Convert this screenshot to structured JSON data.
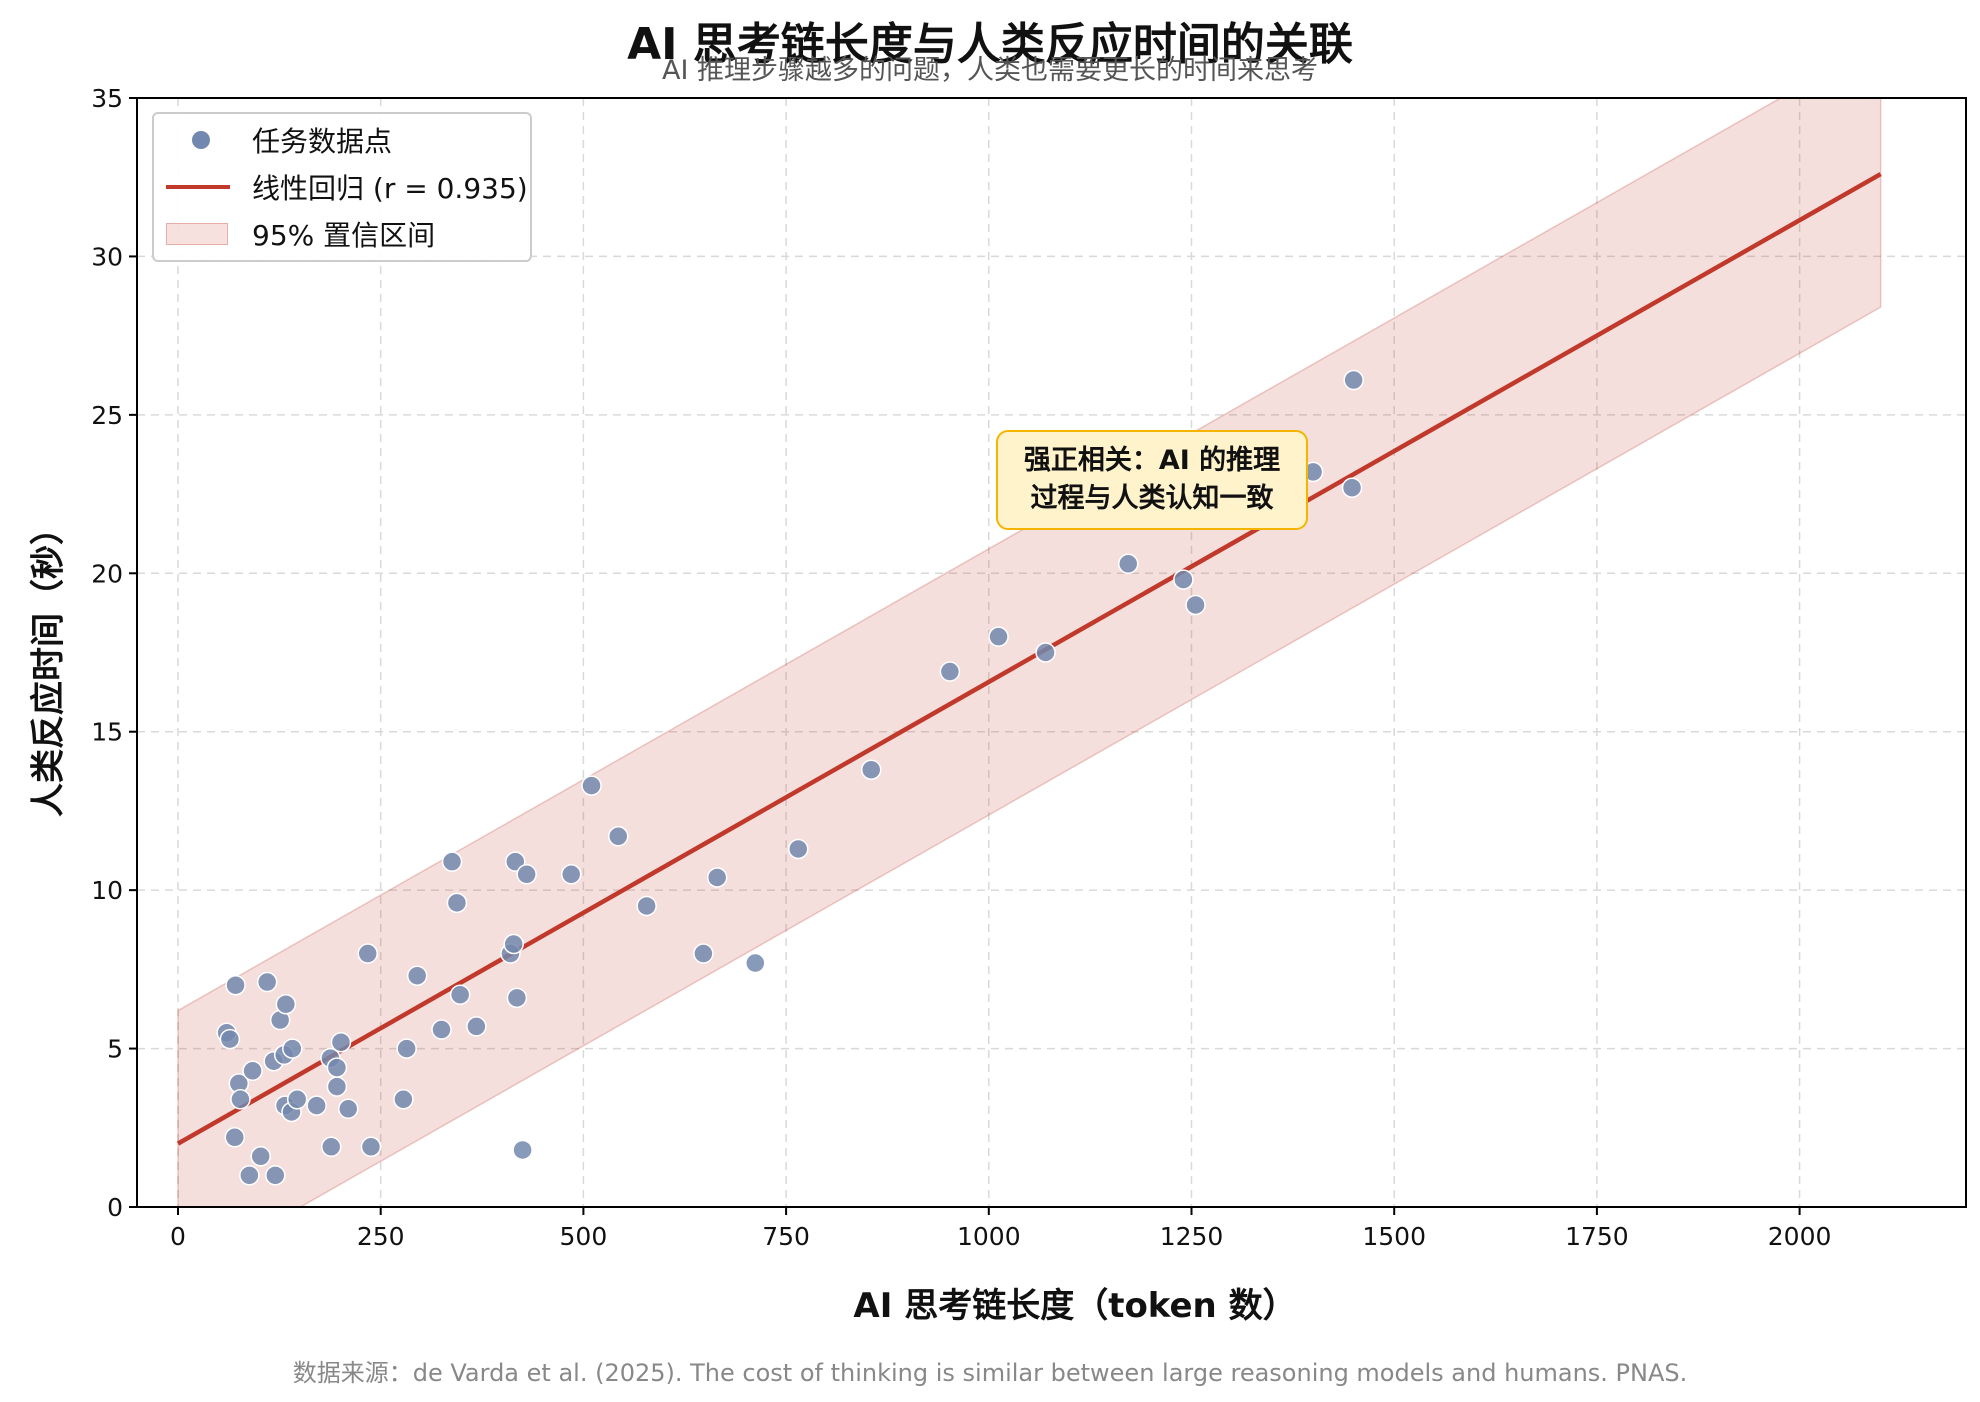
{
  "title": "AI 思考链长度与人类反应时间的关联",
  "subtitle": "AI 推理步骤越多的问题，人类也需要更长的时间来思考",
  "source": "数据来源：de Varda et al. (2025). The cost of thinking is similar between large reasoning models and humans. PNAS.",
  "colors": {
    "points": "#7388ae",
    "regression_line": "#c0392b",
    "band": "#c0392b",
    "annotation_bg": "#fff3cc",
    "annotation_border": "#f4b400"
  },
  "annotation": {
    "line1": "强正相关：AI 的推理",
    "line2": "过程与人类认知一致"
  },
  "chart_data": {
    "type": "scatter",
    "xlabel": "AI 思考链长度（token 数）",
    "ylabel": "人类反应时间（秒）",
    "xlim": [
      -50,
      2200
    ],
    "ylim": [
      0,
      35
    ],
    "x_ticks": [
      0,
      250,
      500,
      750,
      1000,
      1250,
      1500,
      1750,
      2000
    ],
    "y_ticks": [
      0,
      5,
      10,
      15,
      20,
      25,
      30,
      35
    ],
    "grid": true,
    "legend_position": "top-left",
    "legend": [
      "任务数据点",
      "线性回归 (r = 0.935)",
      "95% 置信区间"
    ],
    "regression": {
      "label": "线性回归 (r = 0.935)",
      "x": [
        0,
        2100
      ],
      "y": [
        2.0,
        32.6
      ]
    },
    "confidence_band": {
      "label": "95% 置信区间",
      "x": [
        0,
        2100
      ],
      "upper": [
        6.2,
        36.8
      ],
      "lower": [
        -2.2,
        28.4
      ]
    },
    "series": [
      {
        "name": "任务数据点",
        "points": [
          [
            60,
            5.5
          ],
          [
            64,
            5.3
          ],
          [
            70,
            2.2
          ],
          [
            71,
            7.0
          ],
          [
            75,
            3.9
          ],
          [
            77,
            3.4
          ],
          [
            88,
            1.0
          ],
          [
            92,
            4.3
          ],
          [
            102,
            1.6
          ],
          [
            110,
            7.1
          ],
          [
            118,
            4.6
          ],
          [
            120,
            1.0
          ],
          [
            126,
            5.9
          ],
          [
            131,
            4.8
          ],
          [
            132,
            3.2
          ],
          [
            133,
            6.4
          ],
          [
            140,
            3.0
          ],
          [
            141,
            5.0
          ],
          [
            147,
            3.4
          ],
          [
            171,
            3.2
          ],
          [
            188,
            4.7
          ],
          [
            189,
            1.9
          ],
          [
            196,
            4.4
          ],
          [
            196,
            3.8
          ],
          [
            201,
            5.2
          ],
          [
            210,
            3.1
          ],
          [
            234,
            8.0
          ],
          [
            238,
            1.9
          ],
          [
            278,
            3.4
          ],
          [
            282,
            5.0
          ],
          [
            295,
            7.3
          ],
          [
            325,
            5.6
          ],
          [
            338,
            10.9
          ],
          [
            344,
            9.6
          ],
          [
            348,
            6.7
          ],
          [
            368,
            5.7
          ],
          [
            410,
            8.0
          ],
          [
            414,
            8.3
          ],
          [
            416,
            10.9
          ],
          [
            418,
            6.6
          ],
          [
            425,
            1.8
          ],
          [
            430,
            10.5
          ],
          [
            485,
            10.5
          ],
          [
            510,
            13.3
          ],
          [
            543,
            11.7
          ],
          [
            578,
            9.5
          ],
          [
            648,
            8.0
          ],
          [
            665,
            10.4
          ],
          [
            712,
            7.7
          ],
          [
            765,
            11.3
          ],
          [
            855,
            13.8
          ],
          [
            952,
            16.9
          ],
          [
            1012,
            18.0
          ],
          [
            1070,
            17.5
          ],
          [
            1172,
            20.3
          ],
          [
            1240,
            19.8
          ],
          [
            1255,
            19.0
          ],
          [
            1400,
            23.2
          ],
          [
            1448,
            22.7
          ],
          [
            1450,
            26.1
          ]
        ]
      }
    ]
  }
}
